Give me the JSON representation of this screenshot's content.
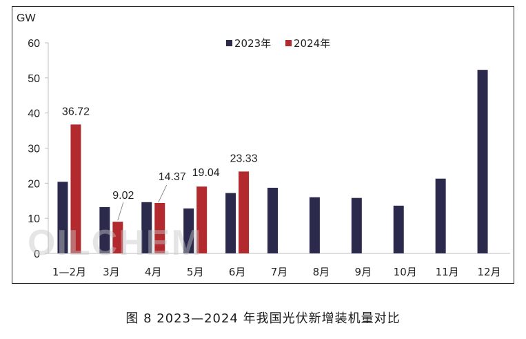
{
  "caption": "图 8  2023—2024 年我国光伏新增装机量对比",
  "watermark": "OILCHEM",
  "colors": {
    "series_2023": "#2b2a4c",
    "series_2024": "#b22a2e",
    "axis": "#bdbdbd",
    "text": "#222222"
  },
  "chart_data": {
    "type": "bar",
    "ylabel": "GW",
    "ylim": [
      0,
      60
    ],
    "yticks": [
      0,
      10,
      20,
      30,
      40,
      50,
      60
    ],
    "categories": [
      "1—2月",
      "3月",
      "4月",
      "5月",
      "6月",
      "7月",
      "8月",
      "9月",
      "10月",
      "11月",
      "12月"
    ],
    "series": [
      {
        "name": "2023年",
        "values": [
          20.4,
          13.2,
          14.6,
          12.8,
          17.2,
          18.7,
          16.0,
          15.8,
          13.6,
          21.3,
          52.3
        ]
      },
      {
        "name": "2024年",
        "values": [
          36.72,
          9.02,
          14.37,
          19.04,
          23.33,
          null,
          null,
          null,
          null,
          null,
          null
        ]
      }
    ],
    "data_labels": [
      "36.72",
      "9.02",
      "14.37",
      "19.04",
      "23.33"
    ],
    "legend": "top-center",
    "grid": false
  }
}
